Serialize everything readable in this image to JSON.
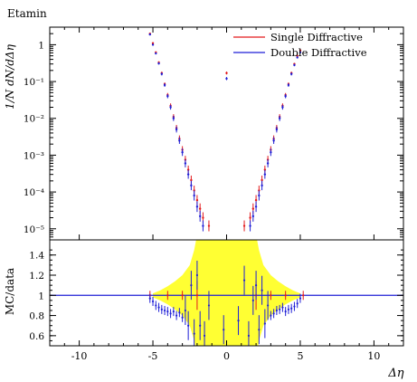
{
  "chart_data": [
    {
      "type": "line",
      "panel": "main",
      "title": "Etamin",
      "ylabel": "1/N dN/dΔη",
      "xlim": [
        -12,
        12
      ],
      "yscale": "log",
      "ylim": [
        5e-06,
        3
      ],
      "y_ticks": [
        {
          "label": "1",
          "value": 1
        },
        {
          "label": "10⁻¹",
          "value": 0.1
        },
        {
          "label": "10⁻²",
          "value": 0.01
        },
        {
          "label": "10⁻³",
          "value": 0.001
        },
        {
          "label": "10⁻⁴",
          "value": 0.0001
        },
        {
          "label": "10⁻⁵",
          "value": 1e-05
        }
      ],
      "legend": "top-right",
      "series": [
        {
          "name": "Single Diffractive",
          "color": "#e31a1c",
          "points": [
            [
              -5.2,
              2.0
            ],
            [
              -5.0,
              1.1
            ],
            [
              -4.8,
              0.62
            ],
            [
              -4.6,
              0.33
            ],
            [
              -4.4,
              0.17
            ],
            [
              -4.2,
              0.085
            ],
            [
              -4.0,
              0.043
            ],
            [
              -3.8,
              0.022
            ],
            [
              -3.6,
              0.011
            ],
            [
              -3.4,
              0.0055
            ],
            [
              -3.2,
              0.0028
            ],
            [
              -3.0,
              0.0014
            ],
            [
              -2.8,
              0.00075
            ],
            [
              -2.6,
              0.0004
            ],
            [
              -2.4,
              0.00021
            ],
            [
              -2.2,
              0.00011
            ],
            [
              -2.0,
              6e-05
            ],
            [
              -1.8,
              3.5e-05
            ],
            [
              -1.6,
              2e-05
            ],
            [
              -1.2,
              1.2e-05
            ],
            [
              0.0,
              0.17
            ],
            [
              1.2,
              1.2e-05
            ],
            [
              1.6,
              2e-05
            ],
            [
              1.8,
              3.5e-05
            ],
            [
              2.0,
              6e-05
            ],
            [
              2.2,
              0.00011
            ],
            [
              2.4,
              0.00021
            ],
            [
              2.6,
              0.0004
            ],
            [
              2.8,
              0.00075
            ],
            [
              3.0,
              0.0014
            ],
            [
              3.2,
              0.0028
            ],
            [
              3.4,
              0.0055
            ],
            [
              3.6,
              0.011
            ],
            [
              3.8,
              0.022
            ],
            [
              4.0,
              0.043
            ],
            [
              4.2,
              0.085
            ],
            [
              4.4,
              0.17
            ],
            [
              4.6,
              0.3
            ],
            [
              4.8,
              0.5
            ],
            [
              5.0,
              0.7
            ]
          ]
        },
        {
          "name": "Double Diffractive",
          "color": "#1f1fd6",
          "points": [
            [
              -5.2,
              1.9
            ],
            [
              -5.0,
              1.0
            ],
            [
              -4.8,
              0.58
            ],
            [
              -4.6,
              0.31
            ],
            [
              -4.4,
              0.16
            ],
            [
              -4.2,
              0.08
            ],
            [
              -4.0,
              0.04
            ],
            [
              -3.8,
              0.02
            ],
            [
              -3.6,
              0.01
            ],
            [
              -3.4,
              0.005
            ],
            [
              -3.2,
              0.0025
            ],
            [
              -3.0,
              0.0012
            ],
            [
              -2.8,
              0.0006
            ],
            [
              -2.6,
              0.0003
            ],
            [
              -2.4,
              0.00015
            ],
            [
              -2.2,
              8e-05
            ],
            [
              -2.0,
              4e-05
            ],
            [
              -1.8,
              2.2e-05
            ],
            [
              -1.6,
              1.2e-05
            ],
            [
              0.0,
              0.12
            ],
            [
              1.6,
              1.2e-05
            ],
            [
              1.8,
              2.2e-05
            ],
            [
              2.0,
              4e-05
            ],
            [
              2.2,
              8e-05
            ],
            [
              2.4,
              0.00015
            ],
            [
              2.6,
              0.0003
            ],
            [
              2.8,
              0.0006
            ],
            [
              3.0,
              0.0012
            ],
            [
              3.2,
              0.0025
            ],
            [
              3.4,
              0.005
            ],
            [
              3.6,
              0.01
            ],
            [
              3.8,
              0.02
            ],
            [
              4.0,
              0.04
            ],
            [
              4.2,
              0.08
            ],
            [
              4.4,
              0.16
            ],
            [
              4.6,
              0.28
            ],
            [
              4.8,
              0.45
            ],
            [
              5.0,
              0.62
            ]
          ]
        }
      ]
    },
    {
      "type": "line",
      "panel": "ratio",
      "ylabel": "MC/data",
      "xlabel": "Δη",
      "xlim": [
        -12,
        12
      ],
      "ylim": [
        0.5,
        1.55
      ],
      "x_ticks": [
        {
          "label": "-10",
          "value": -10
        },
        {
          "label": "-5",
          "value": -5
        },
        {
          "label": "0",
          "value": 0
        },
        {
          "label": "5",
          "value": 5
        },
        {
          "label": "10",
          "value": 10
        }
      ],
      "y_ticks": [
        {
          "label": "0.6",
          "value": 0.6
        },
        {
          "label": "0.8",
          "value": 0.8
        },
        {
          "label": "1",
          "value": 1.0
        },
        {
          "label": "1.2",
          "value": 1.2
        },
        {
          "label": "1.4",
          "value": 1.4
        }
      ],
      "reference_line": 1.0,
      "band_color": "#ffff33",
      "uncertainty_band": [
        [
          -5.0,
          0.02
        ],
        [
          -4.5,
          0.05
        ],
        [
          -4.0,
          0.09
        ],
        [
          -3.5,
          0.14
        ],
        [
          -3.0,
          0.2
        ],
        [
          -2.5,
          0.3
        ],
        [
          -2.2,
          0.45
        ],
        [
          -2.0,
          0.6
        ],
        [
          -1.0,
          0.6
        ],
        [
          -0.5,
          0.6
        ],
        [
          0.5,
          0.6
        ],
        [
          1.0,
          0.6
        ],
        [
          2.0,
          0.6
        ],
        [
          2.2,
          0.45
        ],
        [
          2.5,
          0.3
        ],
        [
          3.0,
          0.2
        ],
        [
          3.5,
          0.14
        ],
        [
          4.0,
          0.09
        ],
        [
          4.5,
          0.05
        ],
        [
          5.0,
          0.02
        ]
      ],
      "series": [
        {
          "color": "#e31a1c",
          "points": [
            [
              -5.2,
              1.0
            ],
            [
              -4.0,
              1.0
            ],
            [
              -3.0,
              1.0
            ],
            [
              -2.0,
              1.0
            ],
            [
              2.0,
              1.0
            ],
            [
              3.0,
              1.0
            ],
            [
              4.0,
              1.0
            ],
            [
              5.2,
              1.0
            ]
          ]
        },
        {
          "color": "#1f1fd6",
          "points": [
            [
              -5.2,
              0.97
            ],
            [
              -5.0,
              0.94
            ],
            [
              -4.8,
              0.9
            ],
            [
              -4.6,
              0.88
            ],
            [
              -4.4,
              0.86
            ],
            [
              -4.2,
              0.85
            ],
            [
              -4.0,
              0.84
            ],
            [
              -3.8,
              0.82
            ],
            [
              -3.6,
              0.84
            ],
            [
              -3.4,
              0.8
            ],
            [
              -3.2,
              0.83
            ],
            [
              -3.0,
              0.78
            ],
            [
              -2.8,
              0.85
            ],
            [
              -2.6,
              0.7
            ],
            [
              -2.4,
              1.1
            ],
            [
              -2.2,
              0.62
            ],
            [
              -2.0,
              1.2
            ],
            [
              -1.8,
              0.7
            ],
            [
              -1.5,
              0.6
            ],
            [
              -1.2,
              0.9
            ],
            [
              -0.2,
              0.66
            ],
            [
              0.8,
              0.75
            ],
            [
              1.2,
              1.15
            ],
            [
              1.5,
              0.6
            ],
            [
              1.8,
              0.95
            ],
            [
              2.0,
              1.1
            ],
            [
              2.2,
              0.66
            ],
            [
              2.4,
              1.05
            ],
            [
              2.6,
              0.72
            ],
            [
              2.8,
              0.9
            ],
            [
              3.0,
              0.8
            ],
            [
              3.2,
              0.82
            ],
            [
              3.4,
              0.85
            ],
            [
              3.6,
              0.86
            ],
            [
              3.8,
              0.88
            ],
            [
              4.0,
              0.84
            ],
            [
              4.2,
              0.86
            ],
            [
              4.4,
              0.87
            ],
            [
              4.6,
              0.89
            ],
            [
              4.8,
              0.92
            ],
            [
              5.0,
              0.97
            ]
          ]
        }
      ]
    }
  ]
}
